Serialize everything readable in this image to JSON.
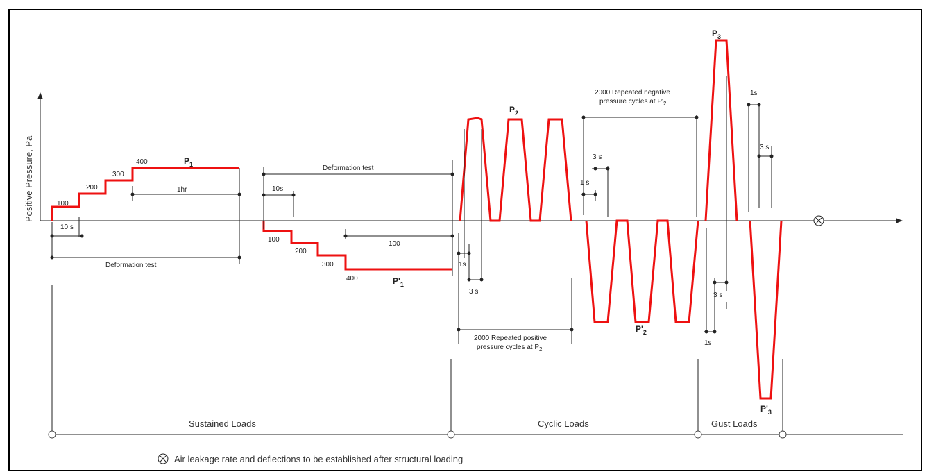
{
  "y_axis_label": "Positive Pressure, Pa",
  "sustained": {
    "steps": [
      "100",
      "200",
      "300",
      "400"
    ],
    "neg_steps": [
      "100",
      "200",
      "300",
      "400"
    ],
    "p1": "P",
    "p1_sub": "1",
    "p1n": "P'",
    "p1n_sub": "1",
    "dur_10s": "10 s",
    "dur_10s_b": "10s",
    "dur_1hr": "1hr",
    "dur_100": "100",
    "deformation_test": "Deformation test",
    "deformation_test_b": "Deformation test"
  },
  "cyclic": {
    "p2": "P",
    "p2_sub": "2",
    "p2n": "P'",
    "p2n_sub": "2",
    "pos_cycles_1": "2000 Repeated positive",
    "pos_cycles_2": "pressure cycles  at P",
    "pos_cycles_sub": "2",
    "neg_cycles_1": "2000 Repeated negative",
    "neg_cycles_2": "pressure cycles  at P'",
    "neg_cycles_sub": "2",
    "t_1s_a": "1s",
    "t_3s_a": "3 s",
    "t_1s_b": "1 s",
    "t_3s_b": "3 s"
  },
  "gust": {
    "p3": "P",
    "p3_sub": "3",
    "p3n": "P'",
    "p3n_sub": "3",
    "t_1s_top": "1s",
    "t_3s_top": "3 s",
    "t_3s_bot": "3 s",
    "t_1s_bot": "1s"
  },
  "phases": [
    "Sustained Loads",
    "Cyclic Loads",
    "Gust Loads"
  ],
  "legend_note": "Air leakage rate and deflections to be established after structural loading",
  "colors": {
    "curve": "#ee1111",
    "line": "#222222",
    "frame": "#000000"
  }
}
